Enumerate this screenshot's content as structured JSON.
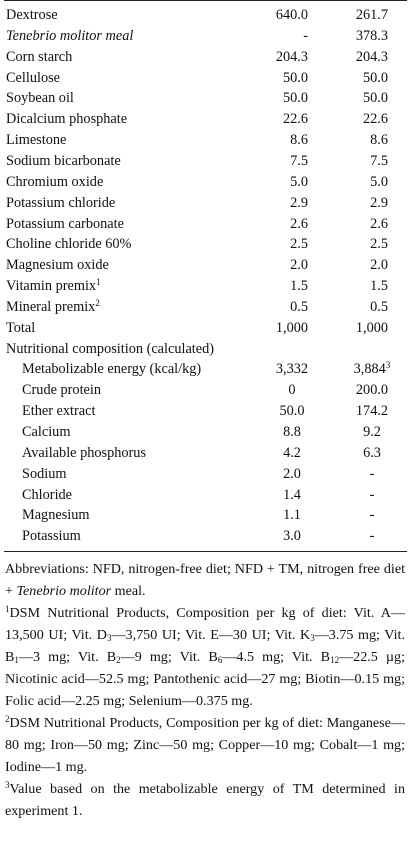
{
  "rows": [
    {
      "name": "Dextrose",
      "nfd": "640.0",
      "tm": "261.7"
    },
    {
      "name": "Tenebrio molitor meal",
      "nfd": "-",
      "tm": "378.3"
    },
    {
      "name": "Corn starch",
      "nfd": "204.3",
      "tm": "204.3"
    },
    {
      "name": "Cellulose",
      "nfd": "50.0",
      "tm": "50.0"
    },
    {
      "name": "Soybean oil",
      "nfd": "50.0",
      "tm": "50.0"
    },
    {
      "name": "Dicalcium phosphate",
      "nfd": "22.6",
      "tm": "22.6"
    },
    {
      "name": "Limestone",
      "nfd": "8.6",
      "tm": "8.6"
    },
    {
      "name": "Sodium bicarbonate",
      "nfd": "7.5",
      "tm": "7.5"
    },
    {
      "name": "Chromium oxide",
      "nfd": "5.0",
      "tm": "5.0"
    },
    {
      "name": "Potassium chloride",
      "nfd": "2.9",
      "tm": "2.9"
    },
    {
      "name": "Potassium carbonate",
      "nfd": "2.6",
      "tm": "2.6"
    },
    {
      "name": "Choline chloride 60%",
      "nfd": "2.5",
      "tm": "2.5"
    },
    {
      "name": "Magnesium oxide",
      "nfd": "2.0",
      "tm": "2.0"
    },
    {
      "name": "Vitamin premix",
      "sup": "1",
      "nfd": "1.5",
      "tm": "1.5"
    },
    {
      "name": "Mineral premix",
      "sup": "2",
      "nfd": "0.5",
      "tm": "0.5"
    }
  ],
  "total": {
    "name": "Total",
    "nfd": "1,000",
    "tm": "1,000"
  },
  "nutr_header": "Nutritional composition (calculated)",
  "nutr_rows": [
    {
      "name": "Metabolizable energy (kcal/kg)",
      "nfd": "3,332",
      "tm": "3,884",
      "tm_sup": "3"
    },
    {
      "name": "Crude protein",
      "nfd": "0",
      "tm": "200.0"
    },
    {
      "name": "Ether extract",
      "nfd": "50.0",
      "tm": "174.2"
    },
    {
      "name": "Calcium",
      "nfd": "8.8",
      "tm": "9.2"
    },
    {
      "name": "Available phosphorus",
      "nfd": "4.2",
      "tm": "6.3"
    },
    {
      "name": "Sodium",
      "nfd": "2.0",
      "tm": "-"
    },
    {
      "name": "Chloride",
      "nfd": "1.4",
      "tm": "-"
    },
    {
      "name": "Magnesium",
      "nfd": "1.1",
      "tm": "-"
    },
    {
      "name": "Potassium",
      "nfd": "3.0",
      "tm": "-"
    }
  ],
  "notes": {
    "abbrev_a": "Abbreviations: NFD, nitrogen-free diet; NFD + TM, nitrogen free diet + ",
    "abbrev_italic": "Tenebrio molitor",
    "abbrev_b": " meal.",
    "n1_mark": "1",
    "n1_text": "DSM Nutritional Products, Composition per kg of diet: Vit. A—13,500 UI; Vit. D3—3,750 UI; Vit. E—30 UI; Vit. K3—3.75 mg; Vit. B1—3 mg; Vit. B2—9 mg; Vit. B6—4.5 mg; Vit. B12—22.5 µg; Nicotinic acid—52.5 mg; Pantothenic acid—27 mg; Biotin—0.15 mg; Folic acid—2.25 mg; Selenium—0.375 mg.",
    "n2_mark": "2",
    "n2_text": "DSM Nutritional Products, Composition per kg of diet: Manganese—80 mg; Iron—50 mg; Zinc—50 mg; Copper—10 mg; Cobalt—1 mg; Iodine—1 mg.",
    "n3_mark": "3",
    "n3_text": "Value based on the metabolizable energy of TM determined in experiment 1."
  }
}
